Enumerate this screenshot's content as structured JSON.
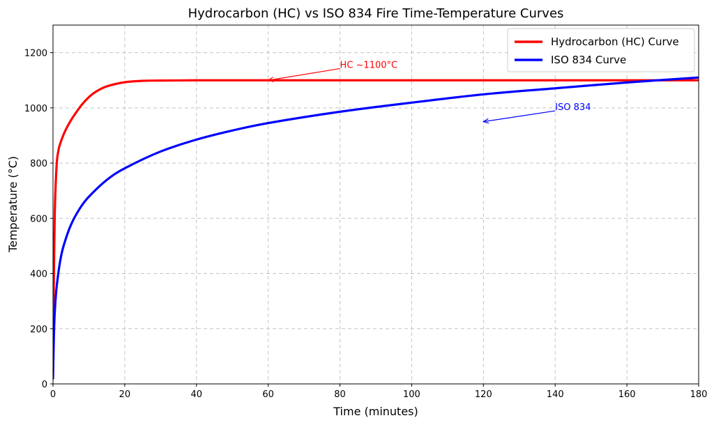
{
  "chart_data": {
    "type": "line",
    "title": "Hydrocarbon (HC) vs ISO 834 Fire Time-Temperature Curves",
    "xlabel": "Time (minutes)",
    "ylabel": "Temperature (°C)",
    "xlim": [
      0,
      180
    ],
    "ylim": [
      0,
      1300
    ],
    "xticks": [
      0,
      20,
      40,
      60,
      80,
      100,
      120,
      140,
      160,
      180
    ],
    "yticks": [
      0,
      200,
      400,
      600,
      800,
      1000,
      1200
    ],
    "grid": true,
    "legend_position": "top-right",
    "series": [
      {
        "name": "Hydrocarbon (HC) Curve",
        "color": "#ff0000",
        "x": [
          0,
          0.25,
          0.5,
          1,
          1.5,
          2,
          3,
          4,
          5,
          6,
          8,
          10,
          12,
          15,
          20,
          25,
          30,
          40,
          60,
          90,
          120,
          150,
          180
        ],
        "y": [
          20,
          400,
          620,
          790,
          845,
          870,
          905,
          932,
          955,
          975,
          1011,
          1039,
          1059,
          1078,
          1093,
          1098,
          1099,
          1100,
          1100,
          1100,
          1100,
          1100,
          1100
        ]
      },
      {
        "name": "ISO 834 Curve",
        "color": "#0000ff",
        "x": [
          0,
          0.25,
          0.5,
          1,
          2,
          3,
          5,
          7.5,
          10,
          15,
          20,
          30,
          40,
          50,
          60,
          80,
          100,
          120,
          140,
          160,
          180
        ],
        "y": [
          20,
          173,
          261,
          349,
          445,
          502,
          576,
          636,
          678,
          739,
          781,
          842,
          885,
          918,
          945,
          986,
          1019,
          1049,
          1071,
          1092,
          1110
        ]
      }
    ],
    "annotations": [
      {
        "text": "HC ~1100°C",
        "color": "#ff0000",
        "text_x": 80,
        "text_y": 1155,
        "arrow_x": 60,
        "arrow_y": 1100
      },
      {
        "text": "ISO 834",
        "color": "#0000ff",
        "text_x": 140,
        "text_y": 1002,
        "arrow_x": 120,
        "arrow_y": 950
      }
    ]
  }
}
